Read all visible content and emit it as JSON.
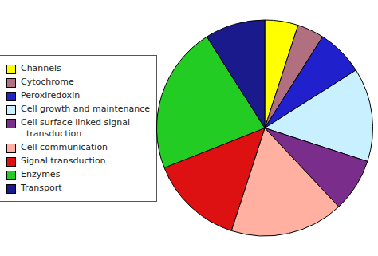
{
  "chart_data": {
    "type": "pie",
    "categories": [
      "Channels",
      "Cytochrome",
      "Peroxiredoxin",
      "Cell growth and maintenance",
      "Cell surface linked signal\n  transduction",
      "Cell communication",
      "Signal transduction",
      "Enzymes",
      "Transport"
    ],
    "values": [
      5,
      4,
      7,
      14,
      8,
      17,
      14,
      22,
      9
    ],
    "colors": [
      "#FFFF00",
      "#B07080",
      "#2020CC",
      "#C8F0FF",
      "#7B2D8B",
      "#FFB0A0",
      "#DD1111",
      "#22CC22",
      "#1A1A8C"
    ],
    "legend": "left"
  }
}
